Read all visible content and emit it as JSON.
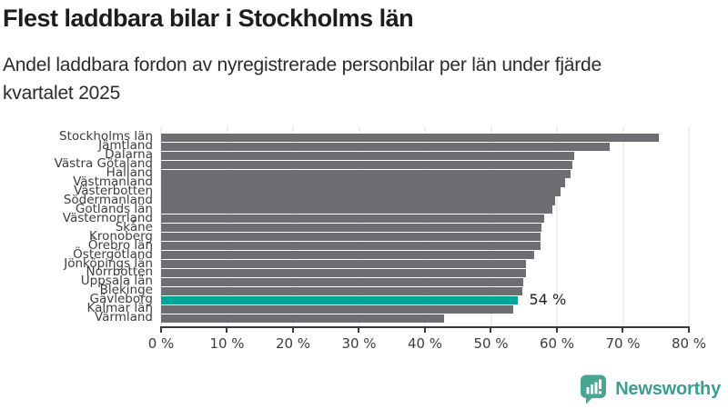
{
  "header": {
    "title": "Flest laddbara bilar i Stockholms län",
    "subtitle_line1": "Andel laddbara fordon av nyregistrerade personbilar per län under fjärde",
    "subtitle_line2": "kvartalet 2025"
  },
  "chart_data": {
    "type": "bar",
    "orientation": "horizontal",
    "title": "Flest laddbara bilar i Stockholms län",
    "subtitle": "Andel laddbara fordon av nyregistrerade personbilar per län under fjärde kvartalet 2025",
    "categories": [
      "Stockholms län",
      "Jämtland",
      "Dalarna",
      "Västra Götaland",
      "Halland",
      "Västmanland",
      "Västerbotten",
      "Södermanland",
      "Gotlands län",
      "Västernorrland",
      "Skåne",
      "Kronoberg",
      "Örebro län",
      "Östergötland",
      "Jönköpings län",
      "Norrbotten",
      "Uppsala län",
      "Blekinge",
      "Gävleborg",
      "Kalmar län",
      "Värmland"
    ],
    "values": [
      75.5,
      68,
      62.6,
      62.4,
      62,
      61.2,
      60.5,
      59.7,
      59.3,
      58,
      57.6,
      57.5,
      57.5,
      56.5,
      55.3,
      55.3,
      54.9,
      54.7,
      54,
      53.4,
      42.9
    ],
    "unit": "%",
    "xlim": [
      0,
      80
    ],
    "x_ticks": [
      "0 %",
      "10 %",
      "20 %",
      "30 %",
      "40 %",
      "50 %",
      "60 %",
      "70 %",
      "80 %"
    ],
    "grid": true,
    "legend": false,
    "highlight": {
      "category": "Gävleborg",
      "value_label": "54 %"
    },
    "colors": {
      "bar": "#6d6e72",
      "highlight": "#00a49c",
      "gridline": "#e0e0e0",
      "axis": "#3a3a3a"
    }
  },
  "footer": {
    "brand": "Newsworthy",
    "logo_icon": "bar-chart-speech-bubble-icon",
    "brand_color": "#3f9d8e",
    "icon_color": "#4aa595"
  }
}
